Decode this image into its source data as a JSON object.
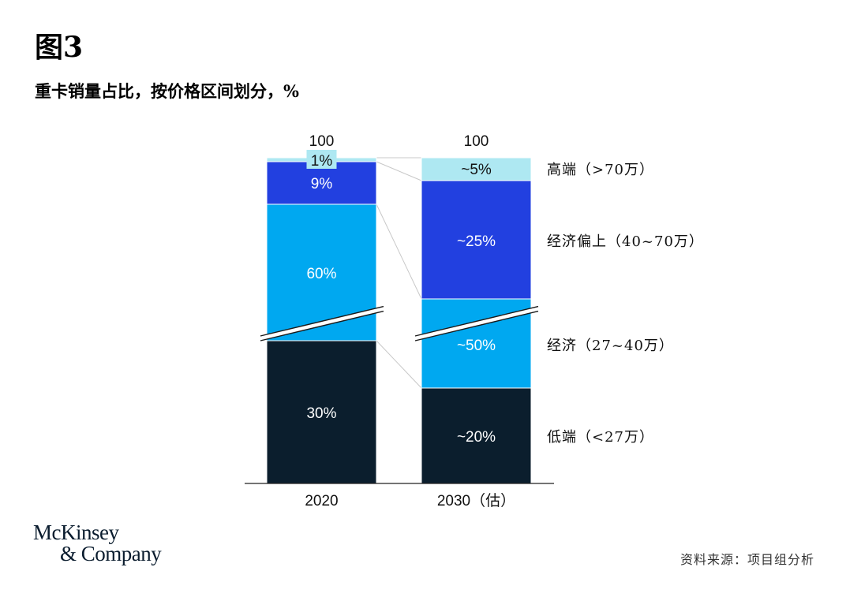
{
  "header": {
    "figure_label": "图3",
    "subtitle": "重卡销量占比，按价格区间划分，%"
  },
  "footer": {
    "logo_line1": "McKinsey",
    "logo_line2": "& Company",
    "source": "资料来源：项目组分析"
  },
  "chart_data": {
    "type": "bar",
    "stacked": true,
    "axis_break": true,
    "categories": [
      "2020",
      "2030（估）"
    ],
    "totals": [
      "100",
      "100"
    ],
    "series": [
      {
        "name": "低端（<27万）",
        "values": [
          30,
          20
        ],
        "labels": [
          "30%",
          "~20%"
        ],
        "color": "#0b1e2d"
      },
      {
        "name": "经济（27~40万）",
        "values": [
          60,
          50
        ],
        "labels": [
          "60%",
          "~50%"
        ],
        "color": "#00a8f0"
      },
      {
        "name": "经济偏上（40~70万）",
        "values": [
          9,
          25
        ],
        "labels": [
          "9%",
          "~25%"
        ],
        "color": "#2240e0"
      },
      {
        "name": "高端（>70万）",
        "values": [
          1,
          5
        ],
        "labels": [
          "1%",
          "~5%"
        ],
        "color": "#aee8f2"
      }
    ],
    "legend_placement": "right, inline with 2030 segments",
    "connector_lines": true,
    "grid": false,
    "ylim": [
      0,
      100
    ]
  }
}
